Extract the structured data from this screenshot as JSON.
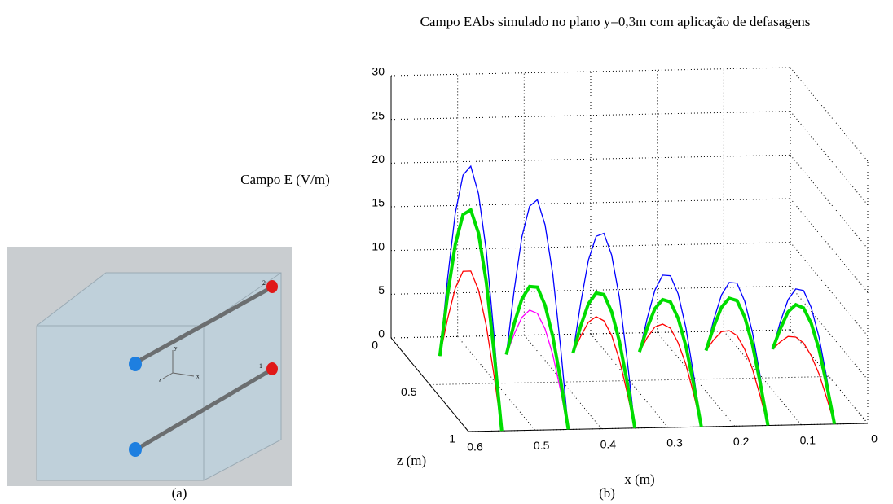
{
  "panel_a": {
    "caption": "(a)",
    "end_labels": [
      "2",
      "1"
    ],
    "axis_labels": [
      "x",
      "y",
      "z"
    ]
  },
  "chart_data": {
    "type": "line3d",
    "caption": "(b)",
    "title": "Campo EAbs simulado no plano y=0,3m com aplicação de defasagens",
    "xlabel": "x (m)",
    "zlabel": "z (m)",
    "ylabel": "Campo E (V/m)",
    "xlim": [
      0,
      0.6
    ],
    "xticks": [
      0,
      0.1,
      0.2,
      0.3,
      0.4,
      0.5,
      0.6
    ],
    "zlim": [
      0,
      1
    ],
    "zticks": [
      0,
      0.5,
      1
    ],
    "ylim": [
      0,
      30
    ],
    "yticks": [
      0,
      5,
      10,
      15,
      20,
      25,
      30
    ],
    "grid": true,
    "z": [
      0.2,
      0.3,
      0.4,
      0.5,
      0.6,
      0.7,
      0.8,
      0.9,
      1.0
    ],
    "series": [
      {
        "color": "#0000ff",
        "x": 0.55,
        "values": [
          0,
          9.9,
          18.5,
          23.9,
          26,
          23.9,
          18.5,
          9.9,
          0
        ]
      },
      {
        "color": "#0000ff",
        "x": 0.45,
        "values": [
          0,
          8.4,
          15.6,
          20.2,
          22,
          20.2,
          15.6,
          8.4,
          0
        ]
      },
      {
        "color": "#0000ff",
        "x": 0.35,
        "values": [
          0,
          6.8,
          12.8,
          16.6,
          18,
          16.6,
          12.8,
          6.8,
          0
        ]
      },
      {
        "color": "#0000ff",
        "x": 0.25,
        "values": [
          0,
          4.9,
          9.2,
          12,
          13,
          12,
          9.2,
          4.9,
          0
        ]
      },
      {
        "color": "#0000ff",
        "x": 0.15,
        "values": [
          0,
          4.6,
          8.5,
          11,
          12,
          11,
          8.5,
          4.6,
          0
        ]
      },
      {
        "color": "#0000ff",
        "x": 0.05,
        "values": [
          0,
          4.2,
          7.8,
          10.1,
          11,
          10.1,
          7.8,
          4.2,
          0
        ]
      },
      {
        "color": "#ff0000",
        "x": 0.55,
        "values": [
          0,
          5.3,
          9.9,
          12.9,
          14,
          12.9,
          9.9,
          5.3,
          0
        ]
      },
      {
        "color": "#ff00ff",
        "x": 0.45,
        "values": [
          0,
          3.4,
          6.4,
          8.3,
          9,
          8.3,
          6.4,
          3.4,
          0
        ]
      },
      {
        "color": "#ff0000",
        "x": 0.35,
        "values": [
          0,
          3,
          5.7,
          7.4,
          8,
          7.4,
          5.7,
          3,
          0
        ]
      },
      {
        "color": "#ff0000",
        "x": 0.25,
        "values": [
          0,
          2.7,
          5,
          6.4,
          7,
          6.4,
          5,
          2.7,
          0
        ]
      },
      {
        "color": "#ff0000",
        "x": 0.15,
        "values": [
          0,
          2.3,
          4.3,
          5.5,
          6,
          5.5,
          4.3,
          2.3,
          0
        ]
      },
      {
        "color": "#ff0000",
        "x": 0.05,
        "values": [
          0,
          1.9,
          3.6,
          4.6,
          5,
          4.6,
          3.6,
          1.9,
          0
        ]
      },
      {
        "color": "#00dd00",
        "x": 0.55,
        "values": [
          0,
          8,
          14.9,
          19.4,
          21,
          19.4,
          14.9,
          8,
          0
        ]
      },
      {
        "color": "#00dd00",
        "x": 0.45,
        "values": [
          0,
          4.6,
          8.5,
          11,
          12,
          11,
          8.5,
          4.6,
          0
        ]
      },
      {
        "color": "#00dd00",
        "x": 0.35,
        "values": [
          0,
          4.2,
          7.8,
          10.1,
          11,
          10.1,
          7.8,
          4.2,
          0
        ]
      },
      {
        "color": "#00dd00",
        "x": 0.25,
        "values": [
          0,
          3.8,
          7.1,
          9.2,
          10,
          9.2,
          7.1,
          3.8,
          0
        ]
      },
      {
        "color": "#00dd00",
        "x": 0.15,
        "values": [
          0,
          3.8,
          7.1,
          9.2,
          10,
          9.2,
          7.1,
          3.8,
          0
        ]
      },
      {
        "color": "#00dd00",
        "x": 0.05,
        "values": [
          0,
          3.4,
          6.4,
          8.3,
          9,
          8.3,
          6.4,
          3.4,
          0
        ]
      }
    ]
  }
}
